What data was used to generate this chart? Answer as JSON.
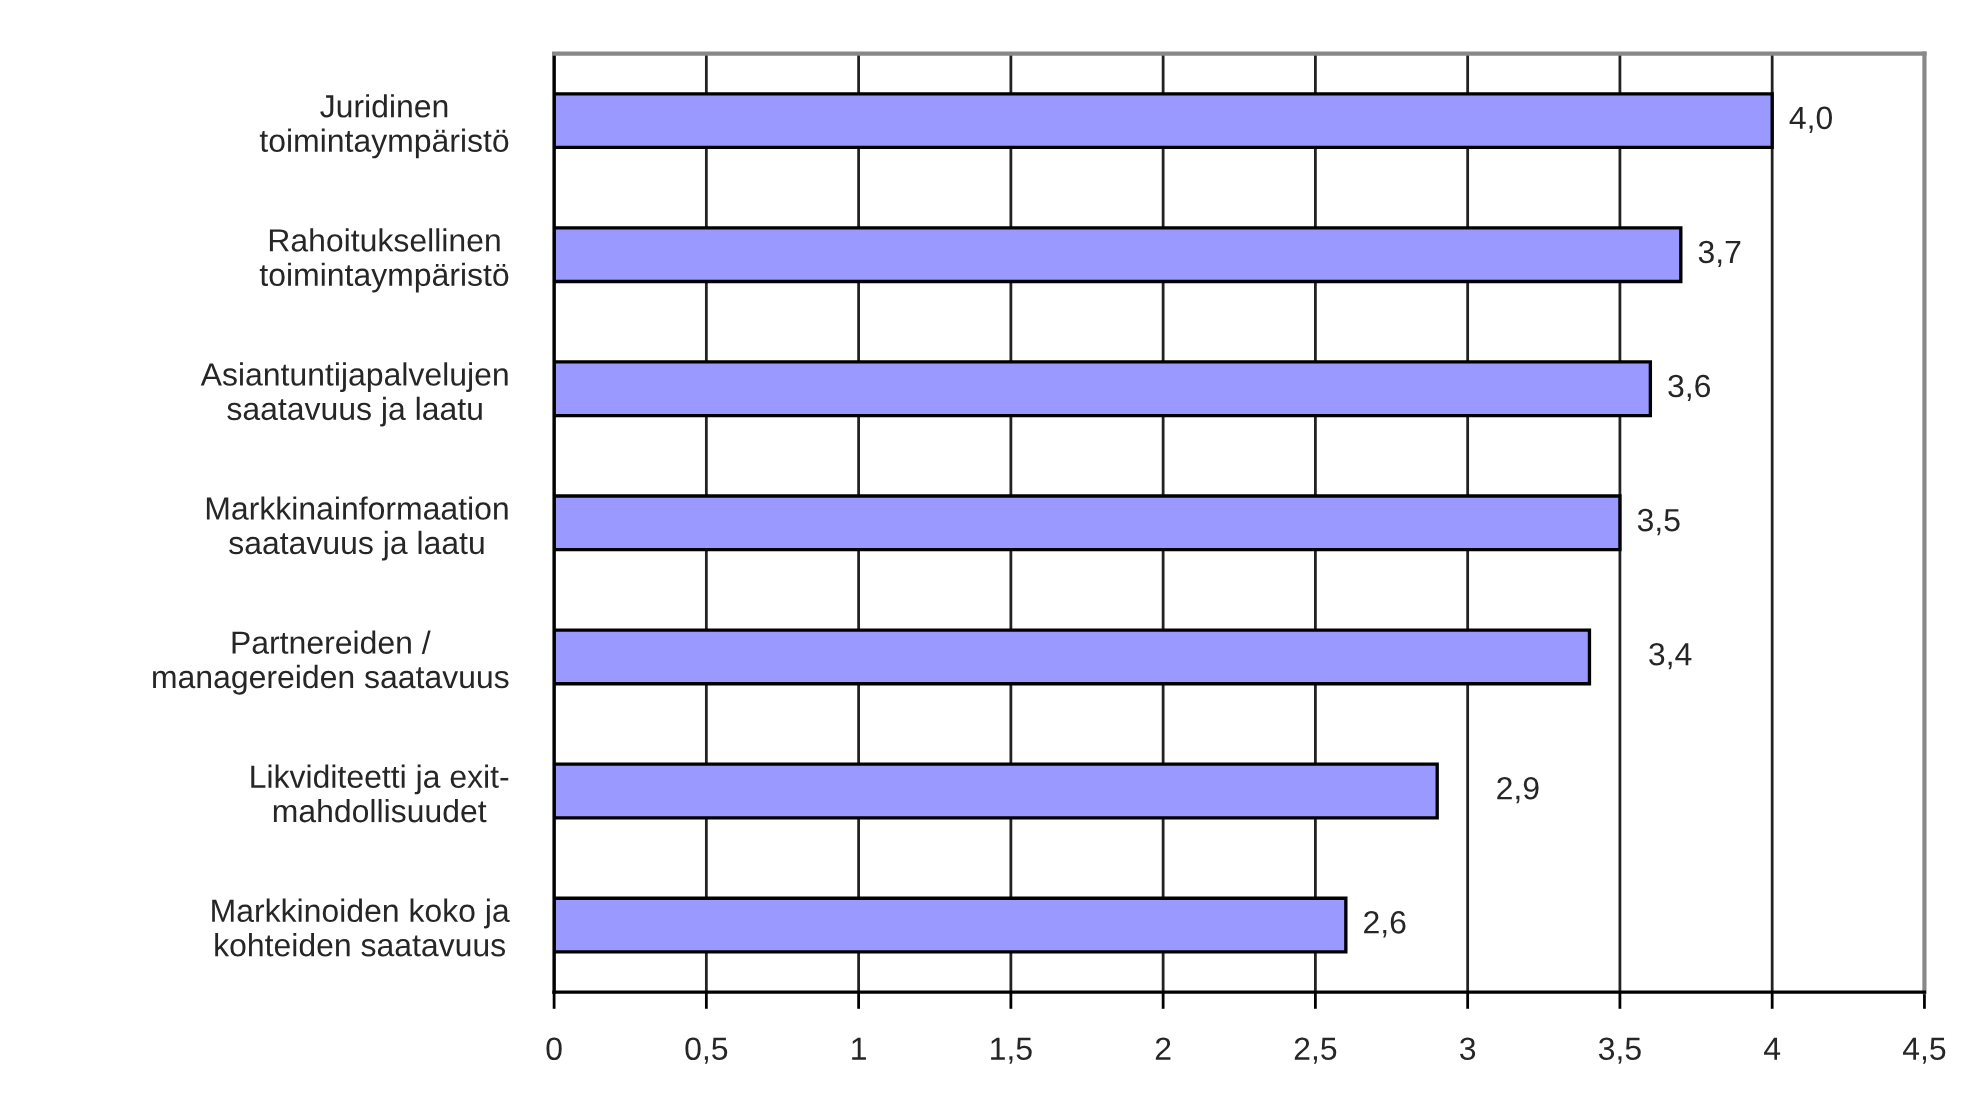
{
  "chart_data": {
    "type": "bar",
    "orientation": "horizontal",
    "categories": [
      "Juridinen\ntoimintaympäristö",
      "Rahoituksellinen\ntoimintaympäristö",
      "Asiantuntijapalvelujen\nsaatavuus ja laatu",
      "Markkinainformaation\nsaatavuus ja laatu",
      "Partnereiden /\nmanagereiden saatavuus",
      "Likviditeetti ja exit-\nmahdollisuudet",
      "Markkinoiden koko ja\nkohteiden saatavuus"
    ],
    "values": [
      4.0,
      3.7,
      3.6,
      3.5,
      3.4,
      2.9,
      2.6
    ],
    "value_labels": [
      "4,0",
      "3,7",
      "3,6",
      "3,5",
      "3,4",
      "2,9",
      "2,6"
    ],
    "color": "#9999ff",
    "xlim": [
      0,
      4.5
    ],
    "xticks": [
      0,
      {
        "value": 0.5,
        "label": "0,5"
      },
      1,
      {
        "value": 1.5,
        "label": "1,5"
      },
      2,
      {
        "value": 2.5,
        "label": "2,5"
      },
      3,
      {
        "value": 3.5,
        "label": "3,5"
      },
      4,
      {
        "value": 4.5,
        "label": "4,5"
      }
    ],
    "grid": "x"
  }
}
